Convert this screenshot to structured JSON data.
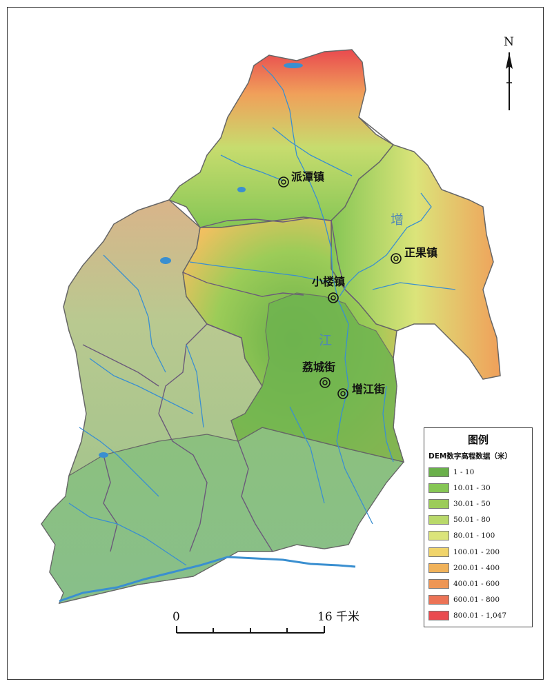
{
  "north": {
    "label": "N"
  },
  "scale_bar": {
    "start_label": "0",
    "end_label": "16 千米"
  },
  "rivers": [
    {
      "name": "增"
    },
    {
      "name": "江"
    }
  ],
  "towns": [
    {
      "name": "派潭镇"
    },
    {
      "name": "正果镇"
    },
    {
      "name": "小楼镇"
    },
    {
      "name": "荔城街"
    },
    {
      "name": "增江街"
    }
  ],
  "legend": {
    "title": "图例",
    "subtitle": "DEM数字高程数据（米）",
    "items": [
      {
        "label": "1 - 10",
        "color": "#6ab04a"
      },
      {
        "label": "10.01 - 30",
        "color": "#86c655"
      },
      {
        "label": "30.01 - 50",
        "color": "#9ccc58"
      },
      {
        "label": "50.01 - 80",
        "color": "#b9d96a"
      },
      {
        "label": "80.01 - 100",
        "color": "#dbe47a"
      },
      {
        "label": "100.01 - 200",
        "color": "#f0d46a"
      },
      {
        "label": "200.01 - 400",
        "color": "#f0b25a"
      },
      {
        "label": "400.01 - 600",
        "color": "#ee9655"
      },
      {
        "label": "600.01 - 800",
        "color": "#ec7356"
      },
      {
        "label": "800.01 - 1,047",
        "color": "#e94a4f"
      }
    ]
  },
  "colors": {
    "river": "#3a8fd0",
    "boundary": "#6b5a7a",
    "lowland": "#8dbf86",
    "plain": "#a8c98e"
  }
}
